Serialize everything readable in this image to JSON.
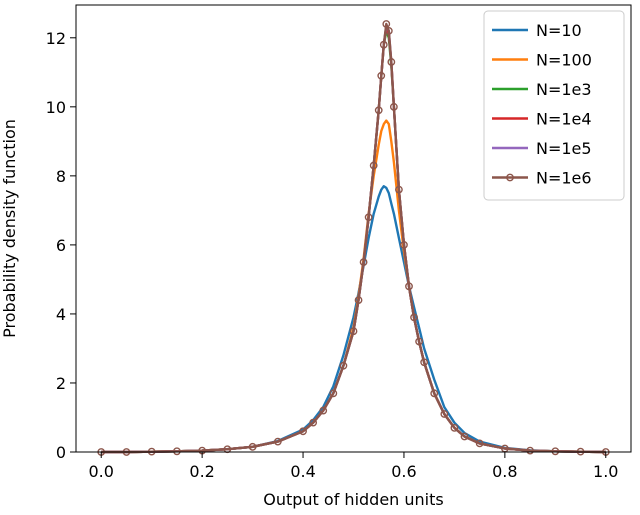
{
  "chart_data": {
    "type": "line",
    "xlabel": "Output of hidden units",
    "ylabel": "Probability density function",
    "xlim": [
      -0.05,
      1.05
    ],
    "ylim": [
      0,
      12.95
    ],
    "xticks": [
      0.0,
      0.2,
      0.4,
      0.6,
      0.8,
      1.0
    ],
    "xtick_labels": [
      "0.0",
      "0.2",
      "0.4",
      "0.6",
      "0.8",
      "1.0"
    ],
    "yticks": [
      0,
      2,
      4,
      6,
      8,
      10,
      12
    ],
    "ytick_labels": [
      "0",
      "2",
      "4",
      "6",
      "8",
      "10",
      "12"
    ],
    "grid": false,
    "legend_position": "top-right",
    "x": [
      0.0,
      0.05,
      0.1,
      0.15,
      0.2,
      0.25,
      0.3,
      0.35,
      0.4,
      0.42,
      0.44,
      0.46,
      0.48,
      0.5,
      0.51,
      0.52,
      0.53,
      0.54,
      0.55,
      0.555,
      0.56,
      0.565,
      0.57,
      0.575,
      0.58,
      0.59,
      0.6,
      0.61,
      0.62,
      0.63,
      0.64,
      0.66,
      0.68,
      0.7,
      0.72,
      0.75,
      0.8,
      0.85,
      0.9,
      0.95,
      1.0
    ],
    "series": [
      {
        "name": "N=10",
        "color": "#1f77b4",
        "marker": false,
        "values": [
          0.0,
          0.0,
          0.01,
          0.02,
          0.04,
          0.08,
          0.15,
          0.32,
          0.65,
          0.92,
          1.3,
          1.9,
          2.8,
          3.9,
          4.6,
          5.4,
          6.2,
          6.9,
          7.4,
          7.6,
          7.7,
          7.65,
          7.5,
          7.2,
          6.9,
          6.2,
          5.5,
          4.8,
          4.2,
          3.6,
          3.0,
          2.1,
          1.3,
          0.85,
          0.55,
          0.3,
          0.12,
          0.05,
          0.02,
          0.01,
          0.0
        ]
      },
      {
        "name": "N=100",
        "color": "#ff7f0e",
        "marker": false,
        "values": [
          0.0,
          0.0,
          0.01,
          0.02,
          0.04,
          0.08,
          0.15,
          0.3,
          0.6,
          0.85,
          1.2,
          1.7,
          2.5,
          3.6,
          4.5,
          5.6,
          6.9,
          8.0,
          8.9,
          9.3,
          9.5,
          9.6,
          9.5,
          9.0,
          8.4,
          7.0,
          5.8,
          4.8,
          3.9,
          3.2,
          2.6,
          1.7,
          1.1,
          0.7,
          0.45,
          0.25,
          0.1,
          0.04,
          0.02,
          0.01,
          0.0
        ]
      },
      {
        "name": "N=1e3",
        "color": "#2ca02c",
        "marker": false,
        "values": [
          0.0,
          0.0,
          0.01,
          0.02,
          0.04,
          0.08,
          0.15,
          0.3,
          0.6,
          0.85,
          1.2,
          1.7,
          2.5,
          3.5,
          4.4,
          5.5,
          6.8,
          8.3,
          9.9,
          10.9,
          11.8,
          12.2,
          12.0,
          11.2,
          10.0,
          7.6,
          6.0,
          4.8,
          3.9,
          3.2,
          2.6,
          1.7,
          1.1,
          0.7,
          0.45,
          0.25,
          0.1,
          0.04,
          0.02,
          0.01,
          0.0
        ]
      },
      {
        "name": "N=1e4",
        "color": "#d62728",
        "marker": false,
        "values": [
          0.0,
          0.0,
          0.01,
          0.02,
          0.04,
          0.08,
          0.15,
          0.3,
          0.6,
          0.85,
          1.2,
          1.7,
          2.5,
          3.5,
          4.4,
          5.5,
          6.8,
          8.3,
          9.9,
          10.9,
          11.8,
          12.3,
          12.1,
          11.3,
          10.0,
          7.6,
          6.0,
          4.8,
          3.9,
          3.2,
          2.6,
          1.7,
          1.1,
          0.7,
          0.45,
          0.25,
          0.1,
          0.04,
          0.02,
          0.01,
          0.0
        ]
      },
      {
        "name": "N=1e5",
        "color": "#9467bd",
        "marker": false,
        "values": [
          0.0,
          0.0,
          0.01,
          0.02,
          0.04,
          0.08,
          0.15,
          0.3,
          0.6,
          0.85,
          1.2,
          1.7,
          2.5,
          3.5,
          4.4,
          5.5,
          6.8,
          8.3,
          9.9,
          10.9,
          11.8,
          12.35,
          12.2,
          11.3,
          10.0,
          7.6,
          6.0,
          4.8,
          3.9,
          3.2,
          2.6,
          1.7,
          1.1,
          0.7,
          0.45,
          0.25,
          0.1,
          0.04,
          0.02,
          0.01,
          0.0
        ]
      },
      {
        "name": "N=1e6",
        "color": "#8c564b",
        "marker": true,
        "values": [
          0.0,
          0.0,
          0.01,
          0.02,
          0.04,
          0.08,
          0.15,
          0.3,
          0.6,
          0.85,
          1.2,
          1.7,
          2.5,
          3.5,
          4.4,
          5.5,
          6.8,
          8.3,
          9.9,
          10.9,
          11.8,
          12.4,
          12.2,
          11.3,
          10.0,
          7.6,
          6.0,
          4.8,
          3.9,
          3.2,
          2.6,
          1.7,
          1.1,
          0.7,
          0.45,
          0.25,
          0.1,
          0.04,
          0.02,
          0.01,
          0.0
        ]
      }
    ]
  }
}
